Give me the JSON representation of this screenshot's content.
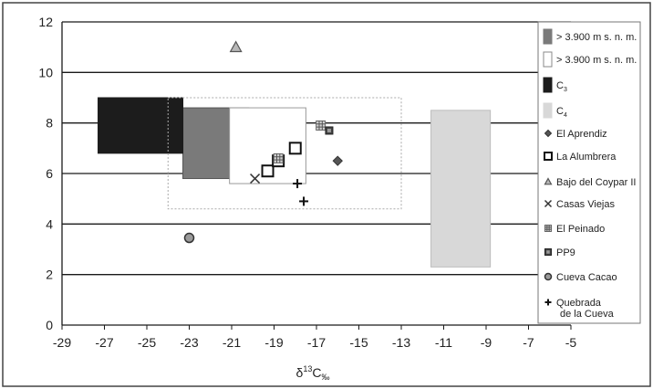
{
  "chart_data": {
    "type": "scatter",
    "title": "",
    "xlabel": "δ¹³C‰",
    "ylabel": "",
    "xlim": [
      -29,
      -5
    ],
    "ylim": [
      0,
      12
    ],
    "xticks": [
      -29,
      -27,
      -25,
      -23,
      -21,
      -19,
      -17,
      -15,
      -13,
      -11,
      -9,
      -7,
      -5
    ],
    "yticks": [
      0,
      2,
      4,
      6,
      8,
      10,
      12
    ],
    "grid": "horizontal",
    "legend_placement": "right",
    "regions": [
      {
        "name": "> 3.900 m s. n. m.",
        "x": [
          -23.3,
          -20.2
        ],
        "y": [
          5.8,
          8.6
        ],
        "fill": "#7a7a7a",
        "stroke": "#555555"
      },
      {
        "name": "> 3.900 m s. n. m.",
        "x": [
          -21.1,
          -17.5
        ],
        "y": [
          5.6,
          8.6
        ],
        "fill": "#ffffff",
        "stroke": "#9a9a9a"
      },
      {
        "name": "C3",
        "x": [
          -27.3,
          -23.3
        ],
        "y": [
          6.8,
          9.0
        ],
        "fill": "#1c1c1c",
        "stroke": "#1c1c1c"
      },
      {
        "name": "C4",
        "x": [
          -11.6,
          -8.8
        ],
        "y": [
          2.3,
          8.5
        ],
        "fill": "#d8d8d8",
        "stroke": "#bdbdbd"
      },
      {
        "name": "",
        "x": [
          -24.0,
          -13.0
        ],
        "y": [
          4.6,
          9.0
        ],
        "fill": "none",
        "stroke": "#aaaaaa",
        "dashed": true
      }
    ],
    "series": [
      {
        "name": "El Aprendiz",
        "marker": "diamond",
        "points": [
          [
            -16.0,
            6.5
          ]
        ]
      },
      {
        "name": "La Alumbrera",
        "marker": "square",
        "points": [
          [
            -19.3,
            6.1
          ],
          [
            -18.8,
            6.5
          ],
          [
            -18.0,
            7.0
          ]
        ]
      },
      {
        "name": "Bajo del Coypar II",
        "marker": "triangle",
        "points": [
          [
            -20.8,
            11.0
          ]
        ]
      },
      {
        "name": "Casas Viejas",
        "marker": "x",
        "points": [
          [
            -19.9,
            5.8
          ]
        ]
      },
      {
        "name": "El Peinado",
        "marker": "hash",
        "points": [
          [
            -18.8,
            6.6
          ],
          [
            -16.8,
            7.9
          ]
        ]
      },
      {
        "name": "PP9",
        "marker": "filled-square",
        "points": [
          [
            -16.4,
            7.7
          ]
        ]
      },
      {
        "name": "Cueva Cacao",
        "marker": "circle",
        "points": [
          [
            -23.0,
            3.45
          ]
        ]
      },
      {
        "name": "Quebrada de la Cueva",
        "marker": "plus",
        "points": [
          [
            -17.9,
            5.6
          ],
          [
            -17.6,
            4.9
          ]
        ]
      }
    ]
  },
  "legend": {
    "items": [
      {
        "label": "> 3.900 m s. n. m.",
        "symbol": "gray-box",
        "color": "#7a7a7a"
      },
      {
        "label": "> 3.900 m s. n. m.",
        "symbol": "white-box",
        "color": "#ffffff"
      },
      {
        "label": "C",
        "sub": "3",
        "symbol": "black-box",
        "color": "#1c1c1c"
      },
      {
        "label": "C",
        "sub": "4",
        "symbol": "lightgray-box",
        "color": "#d8d8d8"
      },
      {
        "label": "El Aprendiz",
        "symbol": "diamond"
      },
      {
        "label": "La Alumbrera",
        "symbol": "square"
      },
      {
        "label": "Bajo del Coypar II",
        "symbol": "triangle"
      },
      {
        "label": "Casas Viejas",
        "symbol": "x"
      },
      {
        "label": "El Peinado",
        "symbol": "hash"
      },
      {
        "label": "PP9",
        "symbol": "filled-square"
      },
      {
        "label": "Cueva Cacao",
        "symbol": "circle"
      },
      {
        "label": "Quebrada",
        "label2": "de la Cueva",
        "symbol": "plus"
      }
    ]
  },
  "xaxis_label": {
    "base": "δ",
    "sup": "13",
    "main": "C",
    "sub": "‰"
  }
}
